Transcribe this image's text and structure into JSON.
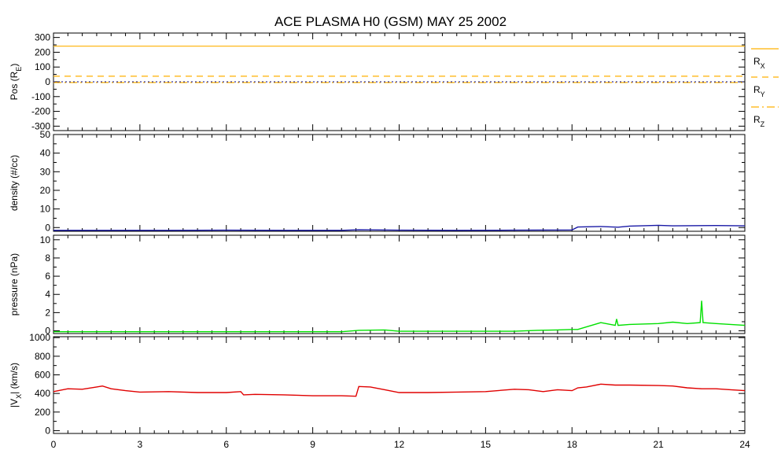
{
  "chart_data": {
    "title": "ACE PLASMA H0 (GSM)   MAY 25 2002",
    "x_axis": {
      "range": [
        0,
        24
      ],
      "ticks": [
        0,
        3,
        6,
        9,
        12,
        15,
        18,
        21,
        24
      ],
      "tick_labels": [
        "0",
        "3",
        "6",
        "9",
        "12",
        "15",
        "18",
        "21",
        "24"
      ]
    },
    "panels": [
      {
        "id": "pos",
        "type": "line",
        "ylabel": "Pos (R_E)",
        "ylim": [
          -330,
          330
        ],
        "yticks": [
          -300,
          -200,
          -100,
          0,
          100,
          200,
          300
        ],
        "ytick_labels": [
          "-300",
          "-200",
          "-100",
          "0",
          "100",
          "200",
          "300"
        ],
        "series": [
          {
            "name": "R_X",
            "style": "solid",
            "color": "#ffb000",
            "x": [
              0,
              24
            ],
            "y": [
              241,
              241
            ]
          },
          {
            "name": "R_Y",
            "style": "dashed",
            "color": "#ffb000",
            "x": [
              0,
              24
            ],
            "y": [
              38,
              38
            ]
          },
          {
            "name": "R_Z",
            "style": "dashdot",
            "color": "#ffb000",
            "x": [
              0,
              24
            ],
            "y": [
              -5,
              -5
            ]
          }
        ],
        "extra_series": [
          {
            "color": "#000080",
            "style": "dotted",
            "x": [
              0,
              24
            ],
            "y": [
              0,
              0
            ]
          }
        ],
        "legend": [
          "R_X",
          "R_Y",
          "R_Z"
        ]
      },
      {
        "id": "density",
        "type": "line",
        "ylabel": "density (#/cc)",
        "ylim": [
          -2,
          50
        ],
        "yticks": [
          0,
          10,
          20,
          30,
          40,
          50
        ],
        "ytick_labels": [
          "0",
          "10",
          "20",
          "30",
          "40",
          "50"
        ],
        "color": "#1a1aa6",
        "x": [
          0,
          2,
          4,
          6,
          8,
          10,
          10.6,
          12,
          14,
          16,
          18,
          18.2,
          19,
          19.6,
          20,
          21,
          21.5,
          22,
          23,
          24
        ],
        "y": [
          -1.5,
          -1.5,
          -1.5,
          -1.4,
          -1.5,
          -1.5,
          -1.2,
          -1.4,
          -1.5,
          -1.4,
          -1.3,
          0.3,
          0.6,
          0.2,
          0.8,
          1.2,
          0.9,
          1.0,
          1.1,
          0.9
        ]
      },
      {
        "id": "pressure",
        "type": "line",
        "ylabel": "pressure (nPa)",
        "ylim": [
          -0.3,
          10.5
        ],
        "yticks": [
          0,
          2,
          4,
          6,
          8,
          10
        ],
        "ytick_labels": [
          "0",
          "2",
          "4",
          "6",
          "8",
          "10"
        ],
        "color": "#00e000",
        "x": [
          0,
          2,
          4,
          6,
          8,
          10,
          10.6,
          11.5,
          12,
          14,
          16,
          16.8,
          17.5,
          18,
          18.2,
          19,
          19.5,
          19.55,
          19.6,
          20,
          21,
          21.5,
          22,
          22.45,
          22.5,
          22.55,
          23,
          24
        ],
        "y": [
          -0.1,
          -0.1,
          -0.1,
          -0.1,
          -0.1,
          -0.1,
          0.05,
          0.1,
          -0.05,
          -0.05,
          -0.05,
          0.05,
          0.1,
          0.15,
          0.15,
          0.9,
          0.6,
          1.3,
          0.6,
          0.7,
          0.8,
          0.95,
          0.8,
          0.9,
          3.3,
          0.9,
          0.8,
          0.6
        ]
      },
      {
        "id": "vx",
        "type": "line",
        "ylabel": "|V_X| (km/s)",
        "ylim": [
          -30,
          1010
        ],
        "yticks": [
          0,
          200,
          400,
          600,
          800,
          1000
        ],
        "ytick_labels": [
          "0",
          "200",
          "400",
          "600",
          "800",
          "1000"
        ],
        "color": "#e00000",
        "x": [
          0,
          0.5,
          1,
          1.5,
          1.7,
          2,
          2.5,
          3,
          4,
          5,
          6,
          6.5,
          6.6,
          7,
          8,
          9,
          10,
          10.5,
          10.6,
          11,
          11.5,
          12,
          13,
          14,
          15,
          16,
          16.5,
          17,
          17.5,
          18,
          18.2,
          18.5,
          19,
          19.5,
          20,
          21,
          21.5,
          22,
          22.5,
          23,
          23.5,
          24
        ],
        "y": [
          420,
          450,
          445,
          470,
          480,
          450,
          430,
          415,
          420,
          410,
          410,
          420,
          385,
          390,
          385,
          375,
          375,
          370,
          475,
          470,
          440,
          410,
          410,
          415,
          420,
          445,
          440,
          420,
          440,
          430,
          460,
          470,
          500,
          490,
          490,
          485,
          480,
          460,
          450,
          450,
          440,
          430
        ]
      }
    ]
  }
}
